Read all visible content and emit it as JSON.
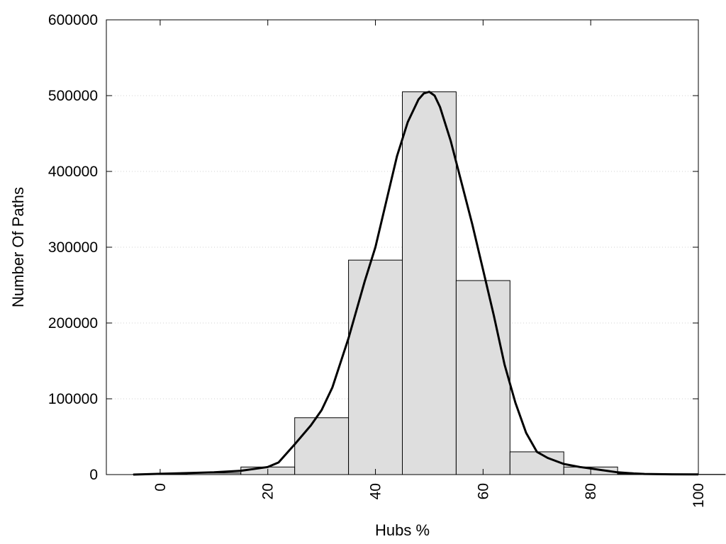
{
  "chart_data": {
    "type": "bar",
    "title": "",
    "xlabel": "Hubs %",
    "ylabel": "Number Of Paths",
    "xlim": [
      -10,
      100
    ],
    "ylim": [
      0,
      600000
    ],
    "x_ticks": [
      0,
      20,
      40,
      60,
      80,
      100
    ],
    "x_tick_labels": [
      "0",
      "20",
      "40",
      "60",
      "80",
      "100"
    ],
    "y_ticks": [
      0,
      100000,
      200000,
      300000,
      400000,
      500000,
      600000
    ],
    "y_tick_labels": [
      "0",
      "100000",
      "200000",
      "300000",
      "400000",
      "500000",
      "600000"
    ],
    "grid": "horizontal dotted",
    "bar_width": 10,
    "bars": [
      {
        "x": 0,
        "value": 500
      },
      {
        "x": 10,
        "value": 2000
      },
      {
        "x": 20,
        "value": 10000
      },
      {
        "x": 30,
        "value": 75000
      },
      {
        "x": 40,
        "value": 283000
      },
      {
        "x": 50,
        "value": 505000
      },
      {
        "x": 60,
        "value": 256000
      },
      {
        "x": 70,
        "value": 30000
      },
      {
        "x": 80,
        "value": 10000
      },
      {
        "x": 90,
        "value": 1000
      },
      {
        "x": 100,
        "value": 300
      }
    ],
    "curve": {
      "x": [
        -5,
        0,
        5,
        10,
        15,
        20,
        22,
        25,
        28,
        30,
        32,
        35,
        38,
        40,
        42,
        44,
        46,
        48,
        49,
        50,
        51,
        52,
        54,
        56,
        58,
        60,
        62,
        64,
        66,
        68,
        70,
        72,
        75,
        78,
        80,
        82,
        85,
        88,
        90,
        95,
        100
      ],
      "y": [
        0,
        1000,
        2000,
        3000,
        5000,
        10000,
        16000,
        40000,
        65000,
        85000,
        115000,
        180000,
        255000,
        300000,
        360000,
        420000,
        465000,
        495000,
        503000,
        505000,
        500000,
        485000,
        440000,
        385000,
        330000,
        270000,
        210000,
        145000,
        95000,
        55000,
        30000,
        22000,
        14000,
        10000,
        8000,
        6000,
        3000,
        1500,
        800,
        400,
        300
      ]
    },
    "colors": {
      "bar_fill": "#dedede",
      "bar_stroke": "#000000",
      "curve": "#000000",
      "grid": "#d0d0d0"
    }
  }
}
